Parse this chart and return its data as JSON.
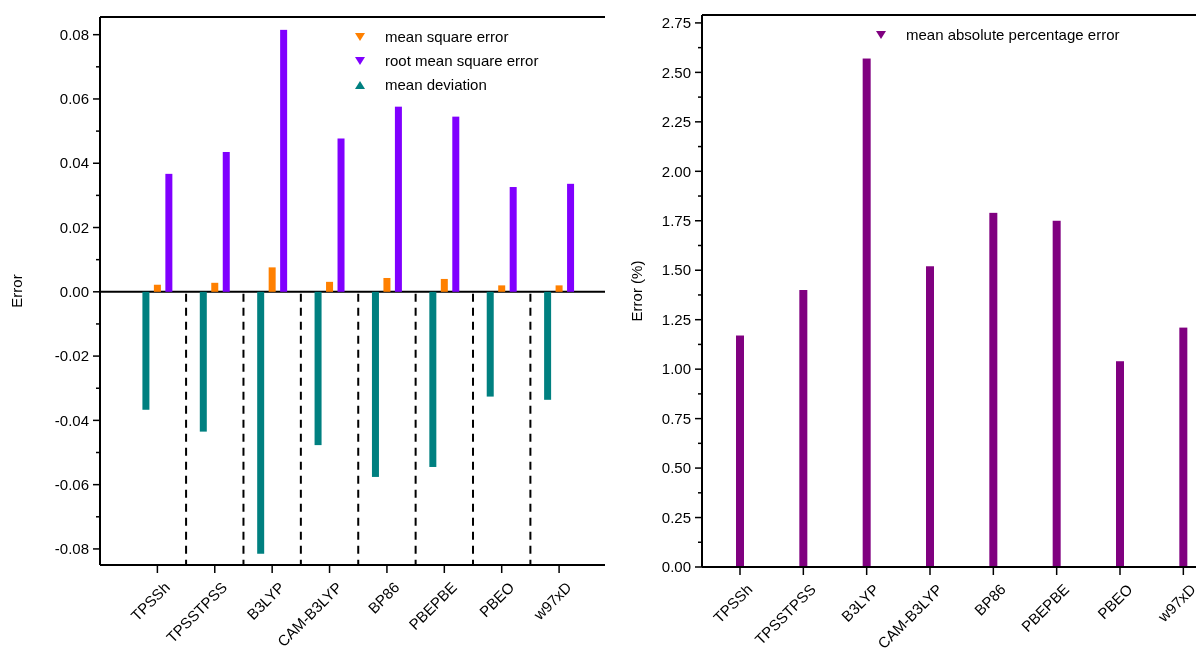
{
  "chart_data": [
    {
      "type": "bar",
      "ylabel": "Error",
      "categories": [
        "TPSSh",
        "TPSSTPSS",
        "B3LYP",
        "CAM-B3LYP",
        "BP86",
        "PBEPBE",
        "PBEO",
        "w97xD"
      ],
      "ylim": [
        -0.085,
        0.0855
      ],
      "yticks": [
        {
          "value": -0.08,
          "label": "-0.08"
        },
        {
          "value": -0.07,
          "label": null
        },
        {
          "value": -0.06,
          "label": "-0.06"
        },
        {
          "value": -0.05,
          "label": null
        },
        {
          "value": -0.04,
          "label": "-0.04"
        },
        {
          "value": -0.03,
          "label": null
        },
        {
          "value": -0.02,
          "label": "-0.02"
        },
        {
          "value": -0.01,
          "label": null
        },
        {
          "value": 0,
          "label": "0.00"
        },
        {
          "value": 0.01,
          "label": null
        },
        {
          "value": 0.02,
          "label": "0.02"
        },
        {
          "value": 0.03,
          "label": null
        },
        {
          "value": 0.04,
          "label": "0.04"
        },
        {
          "value": 0.05,
          "label": null
        },
        {
          "value": 0.06,
          "label": "0.06"
        },
        {
          "value": 0.07,
          "label": null
        },
        {
          "value": 0.08,
          "label": "0.08"
        }
      ],
      "series": [
        {
          "name": "mean square error",
          "color": "#ff8000",
          "marker": "triangle",
          "values": [
            0.0022,
            0.0028,
            0.0076,
            0.0031,
            0.0043,
            0.004,
            0.002,
            0.002
          ]
        },
        {
          "name": "root mean square error",
          "color": "#8000ff",
          "marker": "triangle",
          "values": [
            0.0367,
            0.0435,
            0.0815,
            0.0477,
            0.0576,
            0.0545,
            0.0326,
            0.0336
          ]
        },
        {
          "name": "mean deviation",
          "color": "#008080",
          "marker": "triangle",
          "values": [
            -0.0367,
            -0.0435,
            -0.0815,
            -0.0477,
            -0.0576,
            -0.0545,
            -0.0326,
            -0.0336
          ]
        }
      ],
      "ref_lines": [
        {
          "axis": "y",
          "value": 0,
          "line_style": "solid",
          "color": "#000000"
        }
      ],
      "legend": "top right",
      "grid": false
    },
    {
      "type": "bar",
      "ylabel": "Error (%)",
      "categories": [
        "TPSSh",
        "TPSSTPSS",
        "B3LYP",
        "CAM-B3LYP",
        "BP86",
        "PBEPBE",
        "PBEO",
        "w97xD"
      ],
      "ylim": [
        0,
        2.79
      ],
      "yticks": [
        {
          "value": 0,
          "label": "0.00"
        },
        {
          "value": 0.125,
          "label": null
        },
        {
          "value": 0.25,
          "label": "0.25"
        },
        {
          "value": 0.375,
          "label": null
        },
        {
          "value": 0.5,
          "label": "0.50"
        },
        {
          "value": 0.625,
          "label": null
        },
        {
          "value": 0.75,
          "label": "0.75"
        },
        {
          "value": 0.875,
          "label": null
        },
        {
          "value": 1,
          "label": "1.00"
        },
        {
          "value": 1.125,
          "label": null
        },
        {
          "value": 1.25,
          "label": "1.25"
        },
        {
          "value": 1.375,
          "label": null
        },
        {
          "value": 1.5,
          "label": "1.50"
        },
        {
          "value": 1.625,
          "label": null
        },
        {
          "value": 1.75,
          "label": "1.75"
        },
        {
          "value": 1.875,
          "label": null
        },
        {
          "value": 2,
          "label": "2.00"
        },
        {
          "value": 2.125,
          "label": null
        },
        {
          "value": 2.25,
          "label": "2.25"
        },
        {
          "value": 2.375,
          "label": null
        },
        {
          "value": 2.5,
          "label": "2.50"
        },
        {
          "value": 2.625,
          "label": null
        },
        {
          "value": 2.75,
          "label": "2.75"
        }
      ],
      "series": [
        {
          "name": "mean absolute percentage error",
          "color": "#800080",
          "marker": "triangle",
          "values": [
            1.17,
            1.4,
            2.57,
            1.52,
            1.79,
            1.75,
            1.04,
            1.21
          ]
        }
      ],
      "legend": "top right",
      "grid": false
    }
  ]
}
